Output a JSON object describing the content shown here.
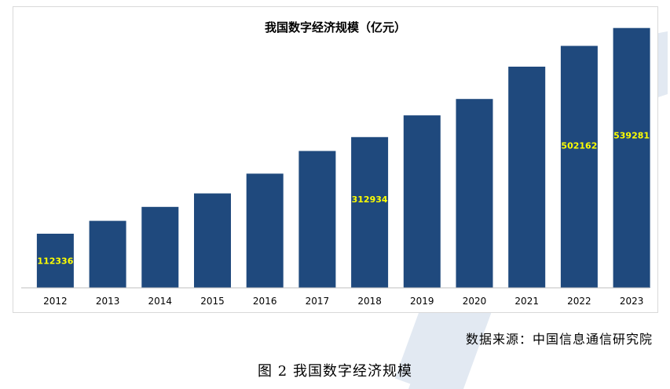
{
  "chart_data": {
    "type": "bar",
    "title": "我国数字经济规模（亿元）",
    "categories": [
      "2012",
      "2013",
      "2014",
      "2015",
      "2016",
      "2017",
      "2018",
      "2019",
      "2020",
      "2021",
      "2022",
      "2023"
    ],
    "values": [
      112336,
      139000,
      168000,
      196000,
      237000,
      284000,
      312934,
      358000,
      392000,
      459000,
      502162,
      539281
    ],
    "data_labels": [
      {
        "category": "2012",
        "text": "112336"
      },
      {
        "category": "2018",
        "text": "312934"
      },
      {
        "category": "2022",
        "text": "502162"
      },
      {
        "category": "2023",
        "text": "539281"
      }
    ],
    "ylim": [
      0,
      560000
    ],
    "bar_color": "#1f497d",
    "label_color": "#ffff00",
    "grid": false,
    "legend": "none"
  },
  "source_text": "数据来源：中国信息通信研究院",
  "figure_caption": "图 2  我国数字经济规模",
  "colors": {
    "watermark": "#dfe7f1"
  }
}
